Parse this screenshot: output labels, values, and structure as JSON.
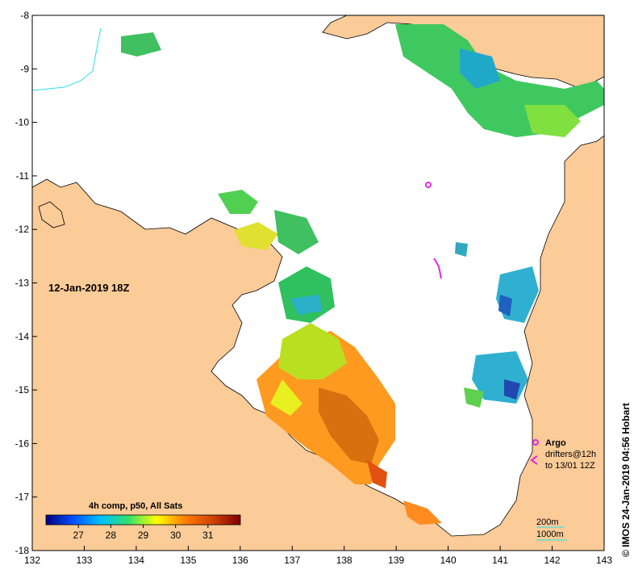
{
  "map": {
    "timestamp": "12-Jan-2019 18Z",
    "credit": "© IMOS 24-Jan-2019 04:56 Hobart",
    "colors": {
      "land": "#fbcb98",
      "sea_nodata": "#ffffff",
      "coast": "#000000",
      "contour_200m": "#2ae0e8",
      "contour_1000m": "#2ae0e8",
      "argo": "#e02ae0",
      "drifter": "#e02ae0",
      "border": "#000000"
    },
    "x_axis": {
      "min": 132,
      "max": 143,
      "ticks": [
        "132",
        "133",
        "134",
        "135",
        "136",
        "137",
        "138",
        "139",
        "140",
        "141",
        "142",
        "143"
      ]
    },
    "y_axis": {
      "min": -18,
      "max": -8,
      "ticks": [
        "-8",
        "-9",
        "-10",
        "-11",
        "-12",
        "-13",
        "-14",
        "-15",
        "-16",
        "-17",
        "-18"
      ]
    }
  },
  "legend": {
    "argo_label": "Argo",
    "drifters_label_1": "drifters@12h",
    "drifters_label_2": "to 13/01 12Z",
    "contour_200m_label": "200m",
    "contour_1000m_label": "1000m"
  },
  "colorbar": {
    "title": "4h comp, p50, All Sats",
    "min": 26,
    "max": 32,
    "tick_values": [
      27,
      28,
      29,
      30,
      31
    ],
    "tick_labels": [
      "27",
      "28",
      "29",
      "30",
      "31"
    ],
    "stops": [
      "#00007f",
      "#0050ff",
      "#00c0ff",
      "#30e070",
      "#ffff00",
      "#ff8000",
      "#d04000",
      "#7f0000"
    ]
  }
}
